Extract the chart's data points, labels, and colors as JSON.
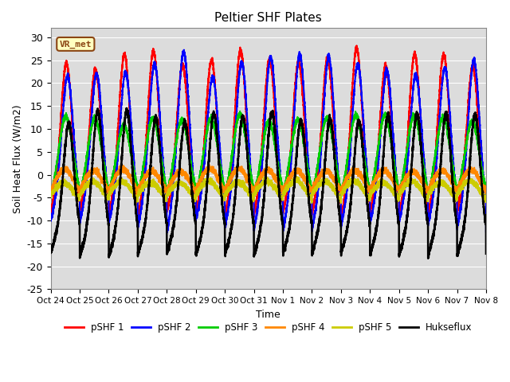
{
  "title": "Peltier SHF Plates",
  "xlabel": "Time",
  "ylabel": "Soil Heat Flux (W/m2)",
  "ylim": [
    -25,
    32
  ],
  "yticks": [
    -25,
    -20,
    -15,
    -10,
    -5,
    0,
    5,
    10,
    15,
    20,
    25,
    30
  ],
  "xtick_labels": [
    "Oct 24",
    "Oct 25",
    "Oct 26",
    "Oct 27",
    "Oct 28",
    "Oct 29",
    "Oct 30",
    "Oct 31",
    "Nov 1",
    "Nov 2",
    "Nov 3",
    "Nov 4",
    "Nov 5",
    "Nov 6",
    "Nov 7",
    "Nov 8"
  ],
  "num_days": 15,
  "bg_color": "#dcdcdc",
  "annotation_text": "VR_met",
  "annotation_bg": "#ffffc0",
  "annotation_border": "#8b4513",
  "legend_entries": [
    "pSHF 1",
    "pSHF 2",
    "pSHF 3",
    "pSHF 4",
    "pSHF 5",
    "Hukseflux"
  ],
  "line_colors": [
    "#ff0000",
    "#0000ff",
    "#00cc00",
    "#ff8800",
    "#cccc00",
    "#000000"
  ],
  "line_widths": [
    1.5,
    1.5,
    1.5,
    1.5,
    1.5,
    1.8
  ],
  "day_peak_hour": 0.54,
  "day_amplitudes": [
    25,
    24,
    12,
    3.5,
    2.5,
    19
  ],
  "night_depths": [
    17,
    20,
    14,
    5,
    4,
    9
  ],
  "night_offsets": [
    0,
    0,
    0,
    -2.5,
    -4.0,
    -6.5
  ],
  "phase_offsets": [
    0.0,
    0.04,
    -0.02,
    -0.06,
    -0.1,
    0.08
  ],
  "day_var": [
    0.12,
    0.12,
    0.1,
    0.15,
    0.15,
    0.08
  ],
  "spike_width": [
    0.18,
    0.18,
    0.22,
    0.28,
    0.3,
    0.16
  ]
}
